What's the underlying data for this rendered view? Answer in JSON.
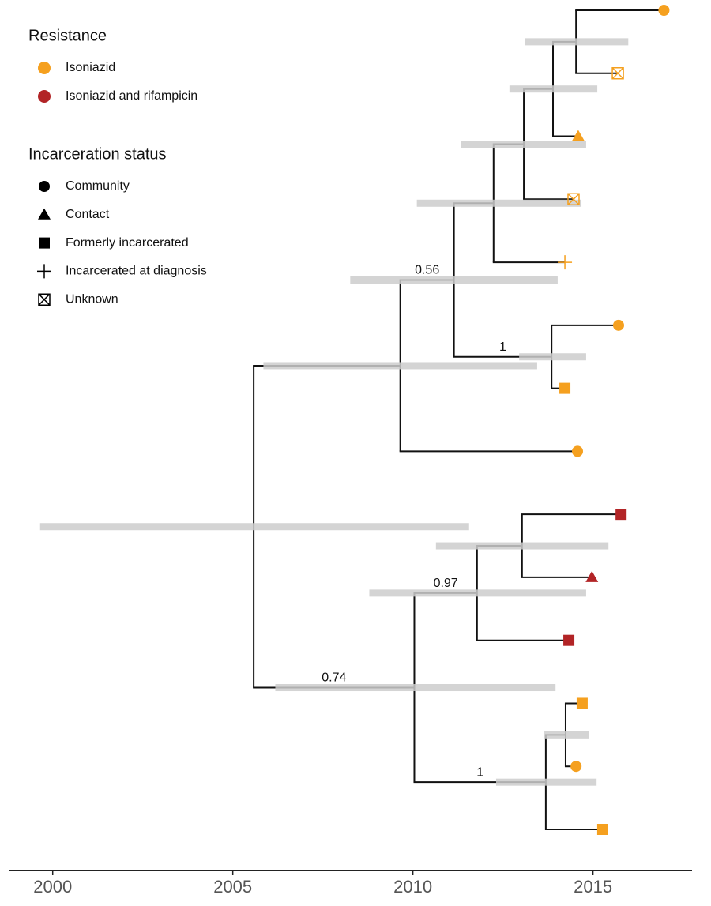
{
  "chart_data": {
    "type": "phylogeny",
    "xlim": [
      1998.8,
      2017.75
    ],
    "xticks": [
      2000,
      2005,
      2010,
      2015
    ],
    "hpd_color": "#cccccc",
    "branch_color": "#111111",
    "legend": {
      "resistance_title": "Resistance",
      "resistance": [
        {
          "name": "Isoniazid",
          "color": "#f5a01f"
        },
        {
          "name": "Isoniazid and rifampicin",
          "color": "#b22426"
        }
      ],
      "status_title": "Incarceration status",
      "status": [
        {
          "name": "Community",
          "shape": "circle"
        },
        {
          "name": "Contact",
          "shape": "triangle"
        },
        {
          "name": "Formerly incarcerated",
          "shape": "square"
        },
        {
          "name": "Incarcerated at diagnosis",
          "shape": "plus"
        },
        {
          "name": "Unknown",
          "shape": "boxx"
        }
      ]
    },
    "nodes": [
      {
        "time": 2005.58,
        "hpd": [
          1999.65,
          2011.56
        ],
        "parent": null
      },
      {
        "time": 2009.65,
        "hpd": [
          2005.85,
          2013.45
        ],
        "parent": 0
      },
      {
        "time": 2011.14,
        "hpd": [
          2008.26,
          2014.02
        ],
        "parent": 1,
        "support": 0.56
      },
      {
        "time": 2012.24,
        "hpd": [
          2010.11,
          2014.68
        ],
        "parent": 2
      },
      {
        "time": 2013.08,
        "hpd": [
          2011.34,
          2014.81
        ],
        "parent": 3
      },
      {
        "time": 2013.89,
        "hpd": [
          2012.68,
          2015.12
        ],
        "parent": 4
      },
      {
        "time": 2014.53,
        "hpd": [
          2013.12,
          2015.98
        ],
        "parent": 5
      },
      {
        "time": 2013.85,
        "hpd": [
          2012.95,
          2014.81
        ],
        "parent": 2,
        "support": 1
      },
      {
        "time": 2010.04,
        "hpd": [
          2006.18,
          2013.96
        ],
        "parent": 0,
        "support": 0.74
      },
      {
        "time": 2011.78,
        "hpd": [
          2008.79,
          2014.81
        ],
        "parent": 8,
        "support": 0.97
      },
      {
        "time": 2013.03,
        "hpd": [
          2010.64,
          2015.43
        ],
        "parent": 9
      },
      {
        "time": 2013.69,
        "hpd": [
          2012.31,
          2015.1
        ],
        "parent": 8,
        "support": 1
      },
      {
        "time": 2014.24,
        "hpd": [
          2013.65,
          2014.88
        ],
        "parent": 11
      }
    ],
    "tips": [
      {
        "time": 2016.97,
        "parent": 6,
        "resistance": "Isoniazid",
        "status": "Community"
      },
      {
        "time": 2015.69,
        "parent": 6,
        "resistance": "Isoniazid",
        "status": "Unknown"
      },
      {
        "time": 2014.59,
        "parent": 5,
        "resistance": "Isoniazid",
        "status": "Contact"
      },
      {
        "time": 2014.46,
        "parent": 4,
        "resistance": "Isoniazid",
        "status": "Unknown"
      },
      {
        "time": 2014.22,
        "parent": 3,
        "resistance": "Isoniazid",
        "status": "Incarcerated at diagnosis"
      },
      {
        "time": 2015.71,
        "parent": 7,
        "resistance": "Isoniazid",
        "status": "Community"
      },
      {
        "time": 2014.22,
        "parent": 7,
        "resistance": "Isoniazid",
        "status": "Formerly incarcerated"
      },
      {
        "time": 2014.57,
        "parent": 1,
        "resistance": "Isoniazid",
        "status": "Community"
      },
      {
        "time": 2015.78,
        "parent": 10,
        "resistance": "Isoniazid and rifampicin",
        "status": "Formerly incarcerated"
      },
      {
        "time": 2014.97,
        "parent": 10,
        "resistance": "Isoniazid and rifampicin",
        "status": "Contact"
      },
      {
        "time": 2014.33,
        "parent": 9,
        "resistance": "Isoniazid and rifampicin",
        "status": "Formerly incarcerated"
      },
      {
        "time": 2014.7,
        "parent": 12,
        "resistance": "Isoniazid",
        "status": "Formerly incarcerated"
      },
      {
        "time": 2014.53,
        "parent": 12,
        "resistance": "Isoniazid",
        "status": "Community"
      },
      {
        "time": 2015.27,
        "parent": 11,
        "resistance": "Isoniazid",
        "status": "Formerly incarcerated"
      }
    ]
  }
}
